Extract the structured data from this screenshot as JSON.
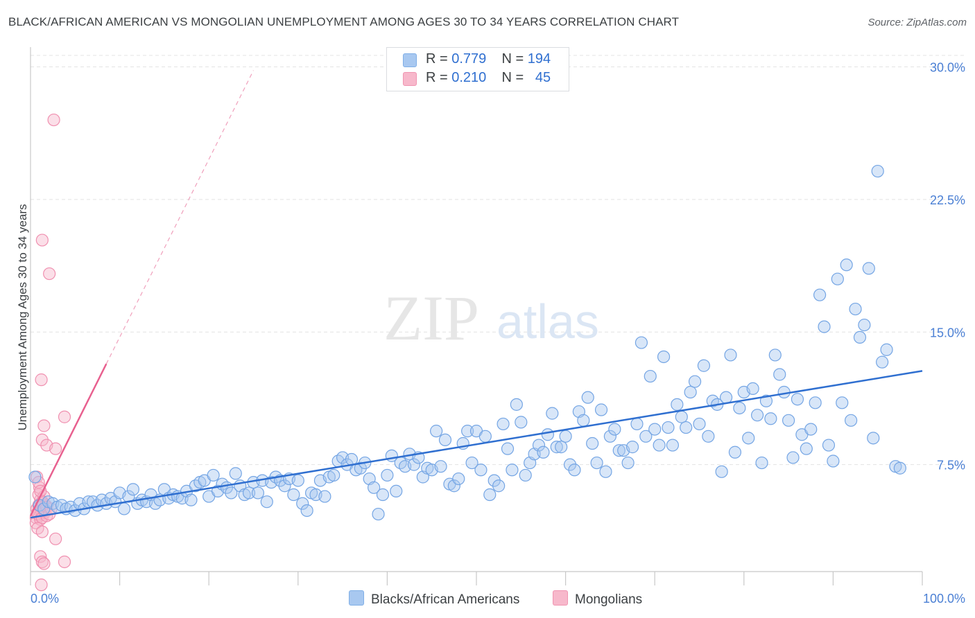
{
  "title": "BLACK/AFRICAN AMERICAN VS MONGOLIAN UNEMPLOYMENT AMONG AGES 30 TO 34 YEARS CORRELATION CHART",
  "source": "Source: ZipAtlas.com",
  "watermark": {
    "zip": "ZIP",
    "atlas": "atlas"
  },
  "legend": {
    "r_label": "R =",
    "n_label": "N =",
    "rows": [
      {
        "r": "0.779",
        "n": "194",
        "color": "#a8c8f0"
      },
      {
        "r": "0.210",
        "n": "45",
        "color": "#f7b8cb"
      }
    ]
  },
  "colors": {
    "blue": "#6fa0e6",
    "blue_line": "#2f6fd0",
    "pink": "#f07aa0",
    "pink_line": "#e8608f"
  },
  "chart_data": {
    "type": "scatter",
    "title": "BLACK/AFRICAN AMERICAN VS MONGOLIAN UNEMPLOYMENT AMONG AGES 30 TO 34 YEARS CORRELATION CHART",
    "xlabel": "",
    "ylabel": "Unemployment Among Ages 30 to 34 years",
    "xlim": [
      0,
      100
    ],
    "ylim": [
      0,
      30
    ],
    "x_tick_labels": [
      "0.0%",
      "100.0%"
    ],
    "y_ticks": [
      7.5,
      15.0,
      22.5,
      30.0
    ],
    "y_tick_labels": [
      "7.5%",
      "15.0%",
      "22.5%",
      "30.0%"
    ],
    "grid": true,
    "legend_position": "top-center",
    "series": [
      {
        "name": "Blacks/African Americans",
        "r": 0.779,
        "n": 194,
        "trend": {
          "x": [
            0,
            100
          ],
          "y": [
            4.5,
            12.8
          ]
        },
        "points": [
          [
            0.5,
            6.8
          ],
          [
            1,
            5.2
          ],
          [
            1.5,
            5.0
          ],
          [
            2,
            5.4
          ],
          [
            2.5,
            5.3
          ],
          [
            3,
            5.1
          ],
          [
            3.5,
            5.2
          ],
          [
            4,
            5.0
          ],
          [
            4.5,
            5.1
          ],
          [
            5,
            4.9
          ],
          [
            5.5,
            5.3
          ],
          [
            6,
            5.0
          ],
          [
            6.5,
            5.4
          ],
          [
            7,
            5.4
          ],
          [
            7.5,
            5.2
          ],
          [
            8,
            5.5
          ],
          [
            8.5,
            5.3
          ],
          [
            9,
            5.6
          ],
          [
            9.5,
            5.4
          ],
          [
            10,
            5.9
          ],
          [
            10.5,
            5.0
          ],
          [
            11,
            5.7
          ],
          [
            11.5,
            6.1
          ],
          [
            12,
            5.3
          ],
          [
            12.5,
            5.5
          ],
          [
            13,
            5.4
          ],
          [
            13.5,
            5.8
          ],
          [
            14,
            5.3
          ],
          [
            14.5,
            5.5
          ],
          [
            15,
            6.1
          ],
          [
            15.5,
            5.6
          ],
          [
            16,
            5.8
          ],
          [
            16.5,
            5.7
          ],
          [
            17,
            5.6
          ],
          [
            17.5,
            6.0
          ],
          [
            18,
            5.5
          ],
          [
            18.5,
            6.3
          ],
          [
            19,
            6.5
          ],
          [
            19.5,
            6.6
          ],
          [
            20,
            5.7
          ],
          [
            20.5,
            6.9
          ],
          [
            21,
            6.0
          ],
          [
            21.5,
            6.4
          ],
          [
            22,
            6.2
          ],
          [
            22.5,
            5.9
          ],
          [
            23,
            7.0
          ],
          [
            23.5,
            6.3
          ],
          [
            24,
            5.8
          ],
          [
            24.5,
            5.9
          ],
          [
            25,
            6.5
          ],
          [
            25.5,
            5.9
          ],
          [
            26,
            6.6
          ],
          [
            26.5,
            5.4
          ],
          [
            27,
            6.5
          ],
          [
            27.5,
            6.8
          ],
          [
            28,
            6.6
          ],
          [
            28.5,
            6.3
          ],
          [
            29,
            6.7
          ],
          [
            29.5,
            5.8
          ],
          [
            30,
            6.6
          ],
          [
            30.5,
            5.3
          ],
          [
            31,
            4.9
          ],
          [
            31.5,
            5.9
          ],
          [
            32,
            5.8
          ],
          [
            32.5,
            6.6
          ],
          [
            33,
            5.7
          ],
          [
            33.5,
            6.8
          ],
          [
            34,
            6.9
          ],
          [
            34.5,
            7.7
          ],
          [
            35,
            7.9
          ],
          [
            35.5,
            7.5
          ],
          [
            36,
            7.8
          ],
          [
            36.5,
            7.2
          ],
          [
            37,
            7.3
          ],
          [
            37.5,
            7.6
          ],
          [
            38,
            6.7
          ],
          [
            38.5,
            6.2
          ],
          [
            39,
            4.7
          ],
          [
            39.5,
            5.8
          ],
          [
            40,
            6.9
          ],
          [
            40.5,
            8.0
          ],
          [
            41,
            6.0
          ],
          [
            41.5,
            7.6
          ],
          [
            42,
            7.4
          ],
          [
            42.5,
            8.1
          ],
          [
            43,
            7.5
          ],
          [
            43.5,
            7.9
          ],
          [
            44,
            6.8
          ],
          [
            44.5,
            7.3
          ],
          [
            45,
            7.2
          ],
          [
            45.5,
            9.4
          ],
          [
            46,
            7.4
          ],
          [
            46.5,
            8.9
          ],
          [
            47,
            6.4
          ],
          [
            47.5,
            6.3
          ],
          [
            48,
            6.7
          ],
          [
            48.5,
            8.7
          ],
          [
            49,
            9.4
          ],
          [
            49.5,
            7.6
          ],
          [
            50,
            9.4
          ],
          [
            50.5,
            7.2
          ],
          [
            51,
            9.1
          ],
          [
            51.5,
            5.8
          ],
          [
            52,
            6.6
          ],
          [
            52.5,
            6.3
          ],
          [
            53,
            9.8
          ],
          [
            53.5,
            8.4
          ],
          [
            54,
            7.2
          ],
          [
            54.5,
            10.9
          ],
          [
            55,
            9.9
          ],
          [
            55.5,
            6.9
          ],
          [
            56,
            7.6
          ],
          [
            56.5,
            8.1
          ],
          [
            57,
            8.6
          ],
          [
            57.5,
            8.2
          ],
          [
            58,
            9.2
          ],
          [
            58.5,
            10.4
          ],
          [
            59,
            8.5
          ],
          [
            59.5,
            8.5
          ],
          [
            60,
            9.1
          ],
          [
            60.5,
            7.5
          ],
          [
            61,
            7.2
          ],
          [
            61.5,
            10.5
          ],
          [
            62,
            10.0
          ],
          [
            62.5,
            11.3
          ],
          [
            63,
            8.7
          ],
          [
            63.5,
            7.6
          ],
          [
            64,
            10.6
          ],
          [
            64.5,
            7.1
          ],
          [
            65,
            9.1
          ],
          [
            65.5,
            9.5
          ],
          [
            66,
            8.3
          ],
          [
            66.5,
            8.3
          ],
          [
            67,
            7.6
          ],
          [
            67.5,
            8.5
          ],
          [
            68,
            9.8
          ],
          [
            68.5,
            14.4
          ],
          [
            69,
            9.1
          ],
          [
            69.5,
            12.5
          ],
          [
            70,
            9.5
          ],
          [
            70.5,
            8.6
          ],
          [
            71,
            13.6
          ],
          [
            71.5,
            9.6
          ],
          [
            72,
            8.6
          ],
          [
            72.5,
            10.9
          ],
          [
            73,
            10.2
          ],
          [
            73.5,
            9.6
          ],
          [
            74,
            11.6
          ],
          [
            74.5,
            12.2
          ],
          [
            75,
            9.8
          ],
          [
            75.5,
            13.1
          ],
          [
            76,
            9.1
          ],
          [
            76.5,
            11.1
          ],
          [
            77,
            10.9
          ],
          [
            77.5,
            7.1
          ],
          [
            78,
            11.3
          ],
          [
            78.5,
            13.7
          ],
          [
            79,
            8.2
          ],
          [
            79.5,
            10.7
          ],
          [
            80,
            11.6
          ],
          [
            80.5,
            9.0
          ],
          [
            81,
            11.8
          ],
          [
            81.5,
            10.3
          ],
          [
            82,
            7.6
          ],
          [
            82.5,
            11.1
          ],
          [
            83,
            10.1
          ],
          [
            83.5,
            13.7
          ],
          [
            84,
            12.6
          ],
          [
            84.5,
            11.6
          ],
          [
            85,
            10.0
          ],
          [
            85.5,
            7.9
          ],
          [
            86,
            11.2
          ],
          [
            86.5,
            9.2
          ],
          [
            87,
            8.4
          ],
          [
            87.5,
            9.5
          ],
          [
            88,
            11.0
          ],
          [
            88.5,
            17.1
          ],
          [
            89,
            15.3
          ],
          [
            89.5,
            8.6
          ],
          [
            90,
            7.7
          ],
          [
            90.5,
            18.0
          ],
          [
            91,
            11.0
          ],
          [
            91.5,
            18.8
          ],
          [
            92,
            10.0
          ],
          [
            92.5,
            16.3
          ],
          [
            93,
            14.7
          ],
          [
            93.5,
            15.4
          ],
          [
            94,
            18.6
          ],
          [
            94.5,
            9.0
          ],
          [
            95,
            24.1
          ],
          [
            95.5,
            13.3
          ],
          [
            96,
            14.0
          ],
          [
            97,
            7.4
          ],
          [
            97.5,
            7.3
          ]
        ]
      },
      {
        "name": "Mongolians",
        "r": 0.21,
        "n": 45,
        "trend": {
          "x": [
            0,
            8.5
          ],
          "y": [
            4.6,
            13.2
          ],
          "dashed_extension": {
            "x": [
              8.5,
              25
            ],
            "y": [
              13.2,
              29.8
            ]
          }
        },
        "points": [
          [
            0.3,
            4.5
          ],
          [
            0.4,
            5.0
          ],
          [
            0.5,
            4.8
          ],
          [
            0.6,
            5.2
          ],
          [
            0.7,
            4.6
          ],
          [
            0.8,
            5.5
          ],
          [
            0.9,
            4.9
          ],
          [
            1.0,
            5.3
          ],
          [
            0.3,
            4.2
          ],
          [
            0.5,
            4.7
          ],
          [
            0.6,
            5.8
          ],
          [
            0.7,
            6.2
          ],
          [
            0.8,
            4.4
          ],
          [
            0.9,
            5.1
          ],
          [
            1.0,
            4.5
          ],
          [
            1.1,
            5.0
          ],
          [
            1.2,
            5.7
          ],
          [
            1.3,
            4.8
          ],
          [
            1.4,
            5.2
          ],
          [
            1.5,
            4.6
          ],
          [
            0.4,
            6.8
          ],
          [
            0.6,
            6.5
          ],
          [
            0.8,
            6.0
          ],
          [
            1.0,
            5.4
          ],
          [
            1.2,
            4.9
          ],
          [
            1.5,
            5.1
          ],
          [
            1.8,
            4.7
          ],
          [
            2.0,
            5.0
          ],
          [
            0.5,
            3.9
          ],
          [
            1.0,
            3.7
          ],
          [
            0.8,
            2.3
          ],
          [
            1.0,
            2.0
          ],
          [
            1.2,
            1.9
          ],
          [
            0.9,
            0.7
          ],
          [
            2.5,
            3.3
          ],
          [
            3.5,
            2.0
          ],
          [
            1.0,
            8.9
          ],
          [
            1.2,
            9.7
          ],
          [
            1.5,
            8.6
          ],
          [
            2.5,
            8.4
          ],
          [
            3.5,
            10.2
          ],
          [
            0.9,
            12.3
          ],
          [
            1.0,
            20.2
          ],
          [
            1.8,
            18.3
          ],
          [
            2.3,
            27.0
          ]
        ]
      }
    ]
  },
  "bottom_legend": {
    "blue_label": "Blacks/African Americans",
    "pink_label": "Mongolians"
  }
}
